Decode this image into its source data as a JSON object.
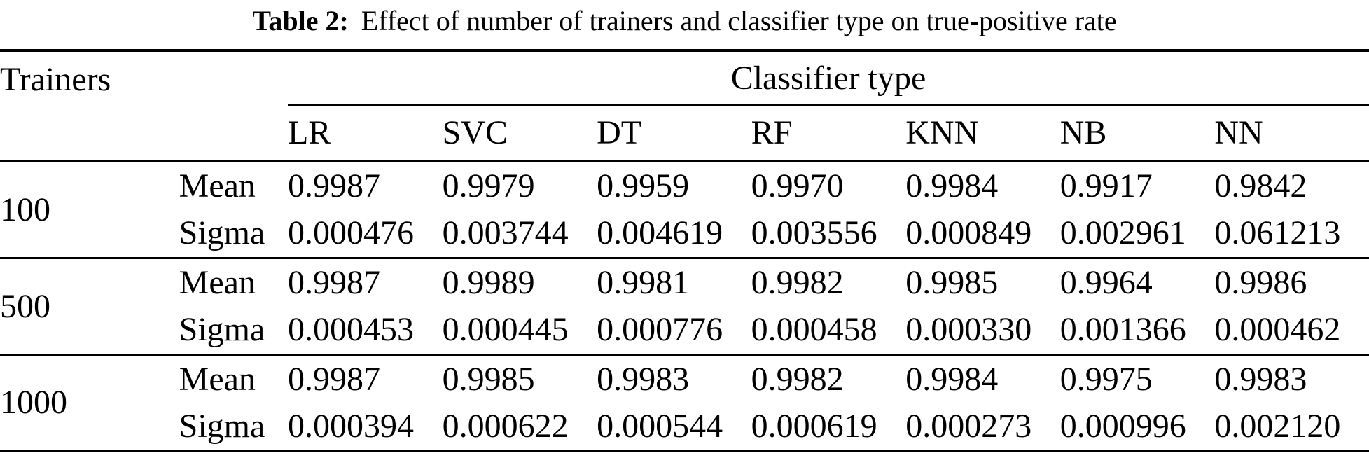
{
  "title": {
    "label": "Table 2:",
    "text": "Effect of number of trainers and classifier type on true-positive rate"
  },
  "table": {
    "corner_header": "Trainers",
    "span_header": "Classifier type",
    "classifier_headers": [
      "LR",
      "SVC",
      "DT",
      "RF",
      "KNN",
      "NB",
      "NN"
    ],
    "stat_labels": {
      "mean": "Mean",
      "sigma": "Sigma"
    },
    "groups": [
      {
        "trainers": "100",
        "mean": [
          "0.9987",
          "0.9979",
          "0.9959",
          "0.9970",
          "0.9984",
          "0.9917",
          "0.9842"
        ],
        "sigma": [
          "0.000476",
          "0.003744",
          "0.004619",
          "0.003556",
          "0.000849",
          "0.002961",
          "0.061213"
        ]
      },
      {
        "trainers": "500",
        "mean": [
          "0.9987",
          "0.9989",
          "0.9981",
          "0.9982",
          "0.9985",
          "0.9964",
          "0.9986"
        ],
        "sigma": [
          "0.000453",
          "0.000445",
          "0.000776",
          "0.000458",
          "0.000330",
          "0.001366",
          "0.000462"
        ]
      },
      {
        "trainers": "1000",
        "mean": [
          "0.9987",
          "0.9985",
          "0.9983",
          "0.9982",
          "0.9984",
          "0.9975",
          "0.9983"
        ],
        "sigma": [
          "0.000394",
          "0.000622",
          "0.000544",
          "0.000619",
          "0.000273",
          "0.000996",
          "0.002120"
        ]
      }
    ]
  }
}
